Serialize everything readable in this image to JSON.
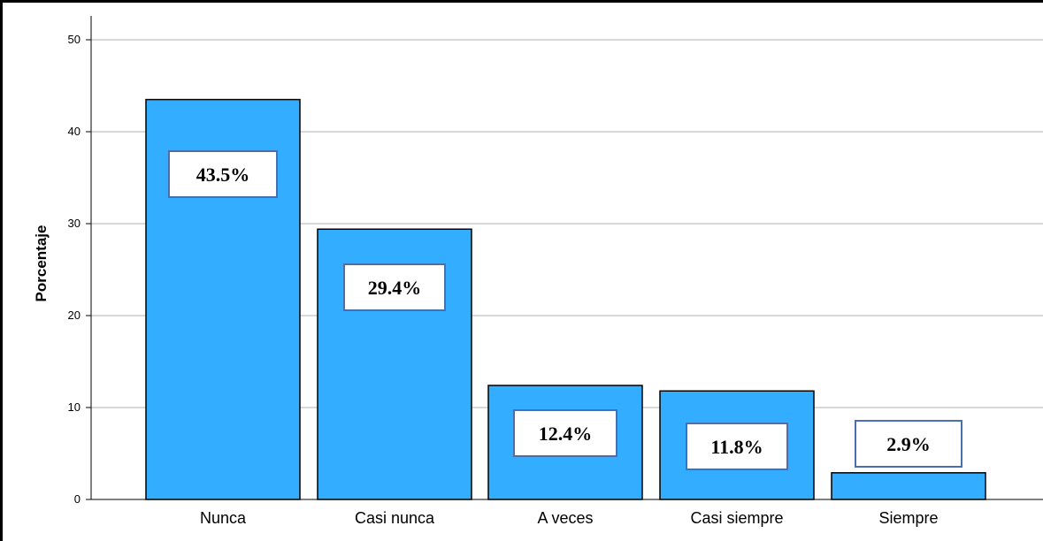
{
  "chart_data": {
    "type": "bar",
    "categories": [
      "Nunca",
      "Casi nunca",
      "A veces",
      "Casi siempre",
      "Siempre"
    ],
    "values": [
      43.5,
      29.4,
      12.4,
      11.8,
      2.9
    ],
    "data_labels": [
      "43.5%",
      "29.4%",
      "12.4%",
      "11.8%",
      "2.9%"
    ],
    "title": "",
    "xlabel": "",
    "ylabel": "Porcentaje",
    "ylim": [
      0,
      50
    ],
    "yticks": [
      "0",
      "10",
      "20",
      "30",
      "40",
      "50"
    ],
    "grid": true,
    "legend": "none",
    "colors": {
      "bar_fill": "#33adff",
      "bar_stroke": "#000000",
      "label_box_stroke": "#4a6fb0",
      "gridline": "#b3b3b3"
    }
  }
}
